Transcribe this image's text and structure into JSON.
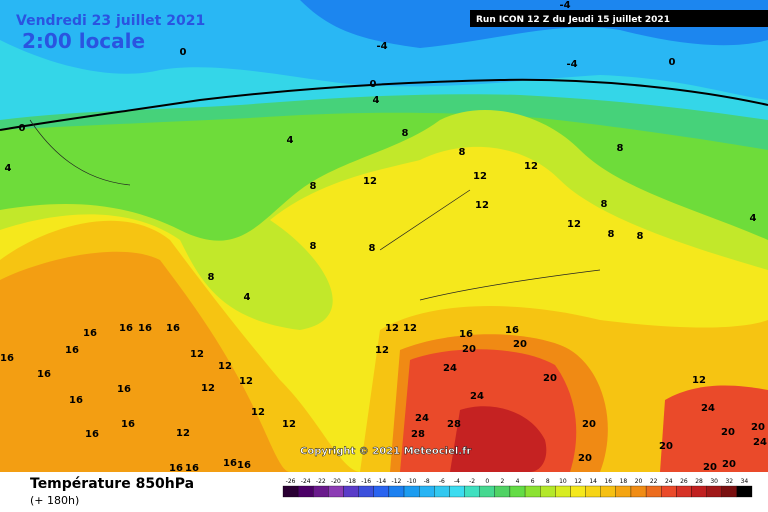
{
  "header": {
    "date": "Vendredi 23 juillet 2021",
    "time": "2:00 locale",
    "run": "Run ICON 12 Z du Jeudi 15 juillet 2021"
  },
  "copyright": "Copyright © 2021 Meteociel.fr",
  "footer": {
    "parameter": "Température 850hPa",
    "lead": "(+ 180h)"
  },
  "legend": {
    "ticks": [
      -26,
      -24,
      -22,
      -20,
      -18,
      -16,
      -14,
      -12,
      -10,
      -8,
      -6,
      -4,
      -2,
      0,
      2,
      4,
      6,
      8,
      10,
      12,
      14,
      16,
      18,
      20,
      22,
      24,
      26,
      28,
      30,
      32,
      34
    ],
    "colors": [
      "#2a0033",
      "#4b0066",
      "#6a1a8c",
      "#8c3cb4",
      "#5a3cc8",
      "#3c50dc",
      "#2a64f0",
      "#1c80f0",
      "#1c9cf0",
      "#28b4f4",
      "#32c8f0",
      "#3cdcf0",
      "#40e0c0",
      "#46d890",
      "#50d264",
      "#64dc46",
      "#8ce232",
      "#b4e82a",
      "#d8ec22",
      "#f5e81c",
      "#f6d416",
      "#f6c012",
      "#f4a412",
      "#f08c14",
      "#ec6c1e",
      "#ea4a2a",
      "#d63226",
      "#c02020",
      "#a01818",
      "#7a1010",
      "#000000"
    ]
  },
  "contour_labels": [
    "0",
    "-4",
    "-4",
    "-4",
    "0",
    "0",
    "4",
    "0",
    "4",
    "4",
    "8",
    "8",
    "8",
    "8",
    "12",
    "12",
    "12",
    "12",
    "8",
    "12",
    "8",
    "8",
    "4",
    "8",
    "8",
    "8",
    "4",
    "12",
    "12",
    "16",
    "16",
    "20",
    "20",
    "16",
    "16",
    "16",
    "16",
    "16",
    "16",
    "12",
    "12",
    "12",
    "16",
    "24",
    "20",
    "12",
    "12",
    "16",
    "16",
    "24",
    "12",
    "24",
    "12",
    "24",
    "28",
    "12",
    "12",
    "16",
    "28",
    "20",
    "20",
    "20",
    "16",
    "24",
    "20",
    "20",
    "16",
    "16",
    "16",
    "16",
    "20",
    "20"
  ]
}
